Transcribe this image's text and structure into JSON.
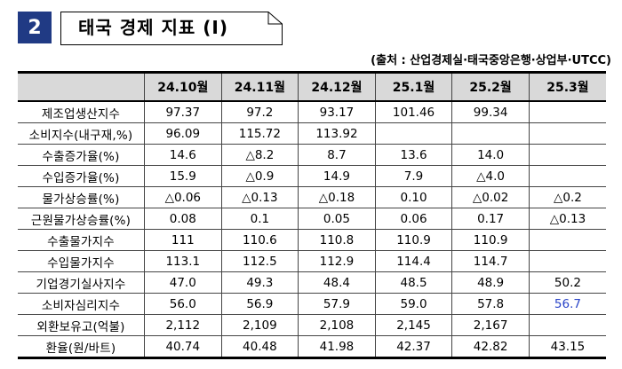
{
  "header": {
    "number": "2",
    "title": "태국 경제 지표 (Ⅰ)",
    "source": "(출처 : 산업경제실·태국중앙은행·상업부·UTCC)"
  },
  "table": {
    "columns": [
      "",
      "24.10월",
      "24.11월",
      "24.12월",
      "25.1월",
      "25.2월",
      "25.3월"
    ],
    "rows": [
      {
        "label": "제조업생산지수",
        "values": [
          "97.37",
          "97.2",
          "93.17",
          "101.46",
          "99.34",
          ""
        ]
      },
      {
        "label": "소비지수(내구재,%)",
        "values": [
          "96.09",
          "115.72",
          "113.92",
          "",
          "",
          ""
        ]
      },
      {
        "label": "수출증가율(%)",
        "values": [
          "14.6",
          "△8.2",
          "8.7",
          "13.6",
          "14.0",
          ""
        ]
      },
      {
        "label": "수입증가율(%)",
        "values": [
          "15.9",
          "△0.9",
          "14.9",
          "7.9",
          "△4.0",
          ""
        ]
      },
      {
        "label": "물가상승률(%)",
        "values": [
          "△0.06",
          "△0.13",
          "△0.18",
          "0.10",
          "△0.02",
          "△0.2"
        ]
      },
      {
        "label": "근원물가상승률(%)",
        "values": [
          "0.08",
          "0.1",
          "0.05",
          "0.06",
          "0.17",
          "△0.13"
        ]
      },
      {
        "label": "수출물가지수",
        "values": [
          "111",
          "110.6",
          "110.8",
          "110.9",
          "110.9",
          ""
        ]
      },
      {
        "label": "수입물가지수",
        "values": [
          "113.1",
          "112.5",
          "112.9",
          "114.4",
          "114.7",
          ""
        ]
      },
      {
        "label": "기업경기실사지수",
        "values": [
          "47.0",
          "49.3",
          "48.4",
          "48.5",
          "48.9",
          "50.2"
        ]
      },
      {
        "label": "소비자심리지수",
        "values": [
          "56.0",
          "56.9",
          "57.9",
          "59.0",
          "57.8",
          "56.7"
        ]
      },
      {
        "label": "외환보유고(억불)",
        "values": [
          "2,112",
          "2,109",
          "2,108",
          "2,145",
          "2,167",
          ""
        ]
      },
      {
        "label": "환율(원/바트)",
        "values": [
          "40.74",
          "40.48",
          "41.98",
          "42.37",
          "42.82",
          "43.15"
        ]
      }
    ],
    "highlight_color": "#2a44c8"
  }
}
